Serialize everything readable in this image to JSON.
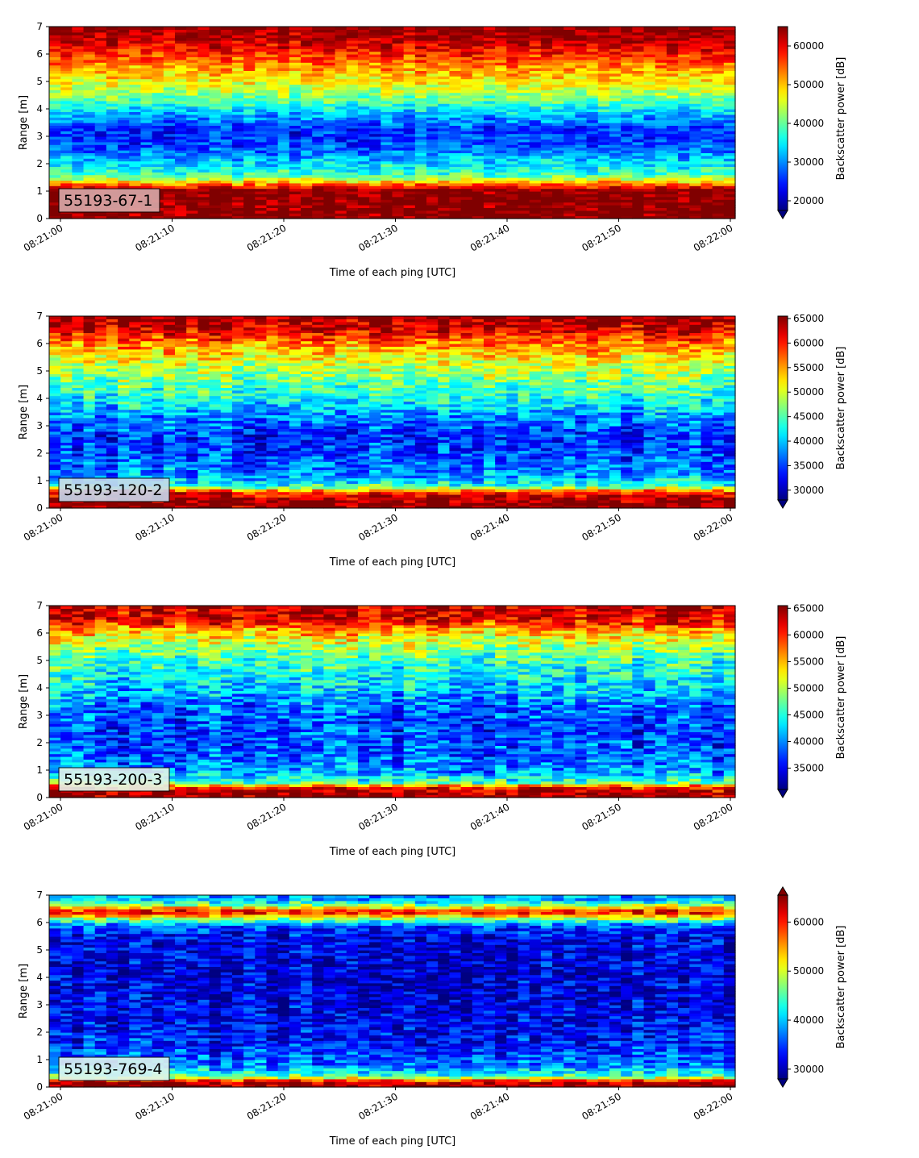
{
  "colormap": {
    "name": "jet",
    "stops": [
      "#00007f",
      "#0000ff",
      "#00ffff",
      "#ffff00",
      "#ff0000",
      "#7f0000"
    ]
  },
  "chart_data": [
    {
      "type": "heatmap",
      "label": "55193-67-1",
      "label_bg": "#d9aaaa",
      "xlabel": "Time of each ping [UTC]",
      "ylabel": "Range [m]",
      "xlim": [
        "08:21:00",
        "08:22:00"
      ],
      "ylim": [
        0,
        7
      ],
      "xticks": [
        "08:21:00",
        "08:21:10",
        "08:21:20",
        "08:21:30",
        "08:21:40",
        "08:21:50",
        "08:22:00"
      ],
      "yticks": [
        0,
        1,
        2,
        3,
        4,
        5,
        6,
        7
      ],
      "colorbar": {
        "label": "Backscatter power [dB]",
        "range": [
          17500,
          65000
        ],
        "ticks": [
          20000,
          30000,
          40000,
          50000,
          60000
        ],
        "extend": "min"
      },
      "profile": [
        {
          "y": 0.0,
          "v": 65000
        },
        {
          "y": 0.25,
          "v": 65000
        },
        {
          "y": 1.05,
          "v": 65000
        },
        {
          "y": 1.2,
          "v": 56000
        },
        {
          "y": 1.6,
          "v": 38000
        },
        {
          "y": 2.0,
          "v": 34000
        },
        {
          "y": 2.6,
          "v": 27000
        },
        {
          "y": 3.2,
          "v": 25000
        },
        {
          "y": 3.9,
          "v": 33000
        },
        {
          "y": 4.5,
          "v": 42000
        },
        {
          "y": 5.2,
          "v": 49000
        },
        {
          "y": 5.9,
          "v": 56000
        },
        {
          "y": 6.5,
          "v": 62000
        },
        {
          "y": 7.0,
          "v": 65000
        }
      ]
    },
    {
      "type": "heatmap",
      "label": "55193-120-2",
      "label_bg": "#c6d9ee",
      "xlabel": "Time of each ping [UTC]",
      "ylabel": "Range [m]",
      "xlim": [
        "08:21:00",
        "08:22:00"
      ],
      "ylim": [
        0,
        7
      ],
      "xticks": [
        "08:21:00",
        "08:21:10",
        "08:21:20",
        "08:21:30",
        "08:21:40",
        "08:21:50",
        "08:22:00"
      ],
      "yticks": [
        0,
        1,
        2,
        3,
        4,
        5,
        6,
        7
      ],
      "colorbar": {
        "label": "Backscatter power [dB]",
        "range": [
          28000,
          65500
        ],
        "ticks": [
          30000,
          35000,
          40000,
          45000,
          50000,
          55000,
          60000,
          65000
        ],
        "extend": "min"
      },
      "profile": [
        {
          "y": 0.0,
          "v": 65000
        },
        {
          "y": 0.3,
          "v": 65000
        },
        {
          "y": 0.6,
          "v": 60000
        },
        {
          "y": 0.8,
          "v": 44000
        },
        {
          "y": 1.2,
          "v": 38000
        },
        {
          "y": 1.8,
          "v": 36000
        },
        {
          "y": 2.5,
          "v": 34000
        },
        {
          "y": 3.2,
          "v": 37000
        },
        {
          "y": 3.9,
          "v": 42000
        },
        {
          "y": 4.6,
          "v": 46000
        },
        {
          "y": 5.3,
          "v": 50000
        },
        {
          "y": 6.0,
          "v": 56000
        },
        {
          "y": 6.5,
          "v": 62000
        },
        {
          "y": 7.0,
          "v": 65000
        }
      ]
    },
    {
      "type": "heatmap",
      "label": "55193-200-3",
      "label_bg": "#e4f2ea",
      "xlabel": "Time of each ping [UTC]",
      "ylabel": "Range [m]",
      "xlim": [
        "08:21:00",
        "08:22:00"
      ],
      "ylim": [
        0,
        7
      ],
      "xticks": [
        "08:21:00",
        "08:21:10",
        "08:21:20",
        "08:21:30",
        "08:21:40",
        "08:21:50",
        "08:22:00"
      ],
      "yticks": [
        0,
        1,
        2,
        3,
        4,
        5,
        6,
        7
      ],
      "colorbar": {
        "label": "Backscatter power [dB]",
        "range": [
          31000,
          65500
        ],
        "ticks": [
          35000,
          40000,
          45000,
          50000,
          55000,
          60000,
          65000
        ],
        "extend": "min"
      },
      "profile": [
        {
          "y": 0.0,
          "v": 65000
        },
        {
          "y": 0.15,
          "v": 65000
        },
        {
          "y": 0.4,
          "v": 60000
        },
        {
          "y": 0.55,
          "v": 47000
        },
        {
          "y": 1.0,
          "v": 40000
        },
        {
          "y": 1.8,
          "v": 38000
        },
        {
          "y": 2.6,
          "v": 37500
        },
        {
          "y": 3.3,
          "v": 39000
        },
        {
          "y": 4.0,
          "v": 42000
        },
        {
          "y": 4.8,
          "v": 45000
        },
        {
          "y": 5.5,
          "v": 49000
        },
        {
          "y": 6.1,
          "v": 55000
        },
        {
          "y": 6.5,
          "v": 62000
        },
        {
          "y": 7.0,
          "v": 63000
        }
      ]
    },
    {
      "type": "heatmap",
      "label": "55193-769-4",
      "label_bg": "#e0f3ef",
      "xlabel": "Time of each ping [UTC]",
      "ylabel": "Range [m]",
      "xlim": [
        "08:21:00",
        "08:22:00"
      ],
      "ylim": [
        0,
        7
      ],
      "xticks": [
        "08:21:00",
        "08:21:10",
        "08:21:20",
        "08:21:30",
        "08:21:40",
        "08:21:50",
        "08:22:00"
      ],
      "yticks": [
        0,
        1,
        2,
        3,
        4,
        5,
        6,
        7
      ],
      "colorbar": {
        "label": "Backscatter power [dB]",
        "range": [
          28000,
          65500
        ],
        "ticks": [
          30000,
          40000,
          50000,
          60000
        ],
        "extend": "both"
      },
      "profile": [
        {
          "y": 0.0,
          "v": 65000
        },
        {
          "y": 0.2,
          "v": 63000
        },
        {
          "y": 0.4,
          "v": 45000
        },
        {
          "y": 0.8,
          "v": 37000
        },
        {
          "y": 1.5,
          "v": 34000
        },
        {
          "y": 2.5,
          "v": 32000
        },
        {
          "y": 3.5,
          "v": 31500
        },
        {
          "y": 4.5,
          "v": 31500
        },
        {
          "y": 5.5,
          "v": 32000
        },
        {
          "y": 5.9,
          "v": 36000
        },
        {
          "y": 6.15,
          "v": 48000
        },
        {
          "y": 6.4,
          "v": 62000
        },
        {
          "y": 6.6,
          "v": 50000
        },
        {
          "y": 6.8,
          "v": 40000
        },
        {
          "y": 7.0,
          "v": 38000
        }
      ]
    }
  ]
}
